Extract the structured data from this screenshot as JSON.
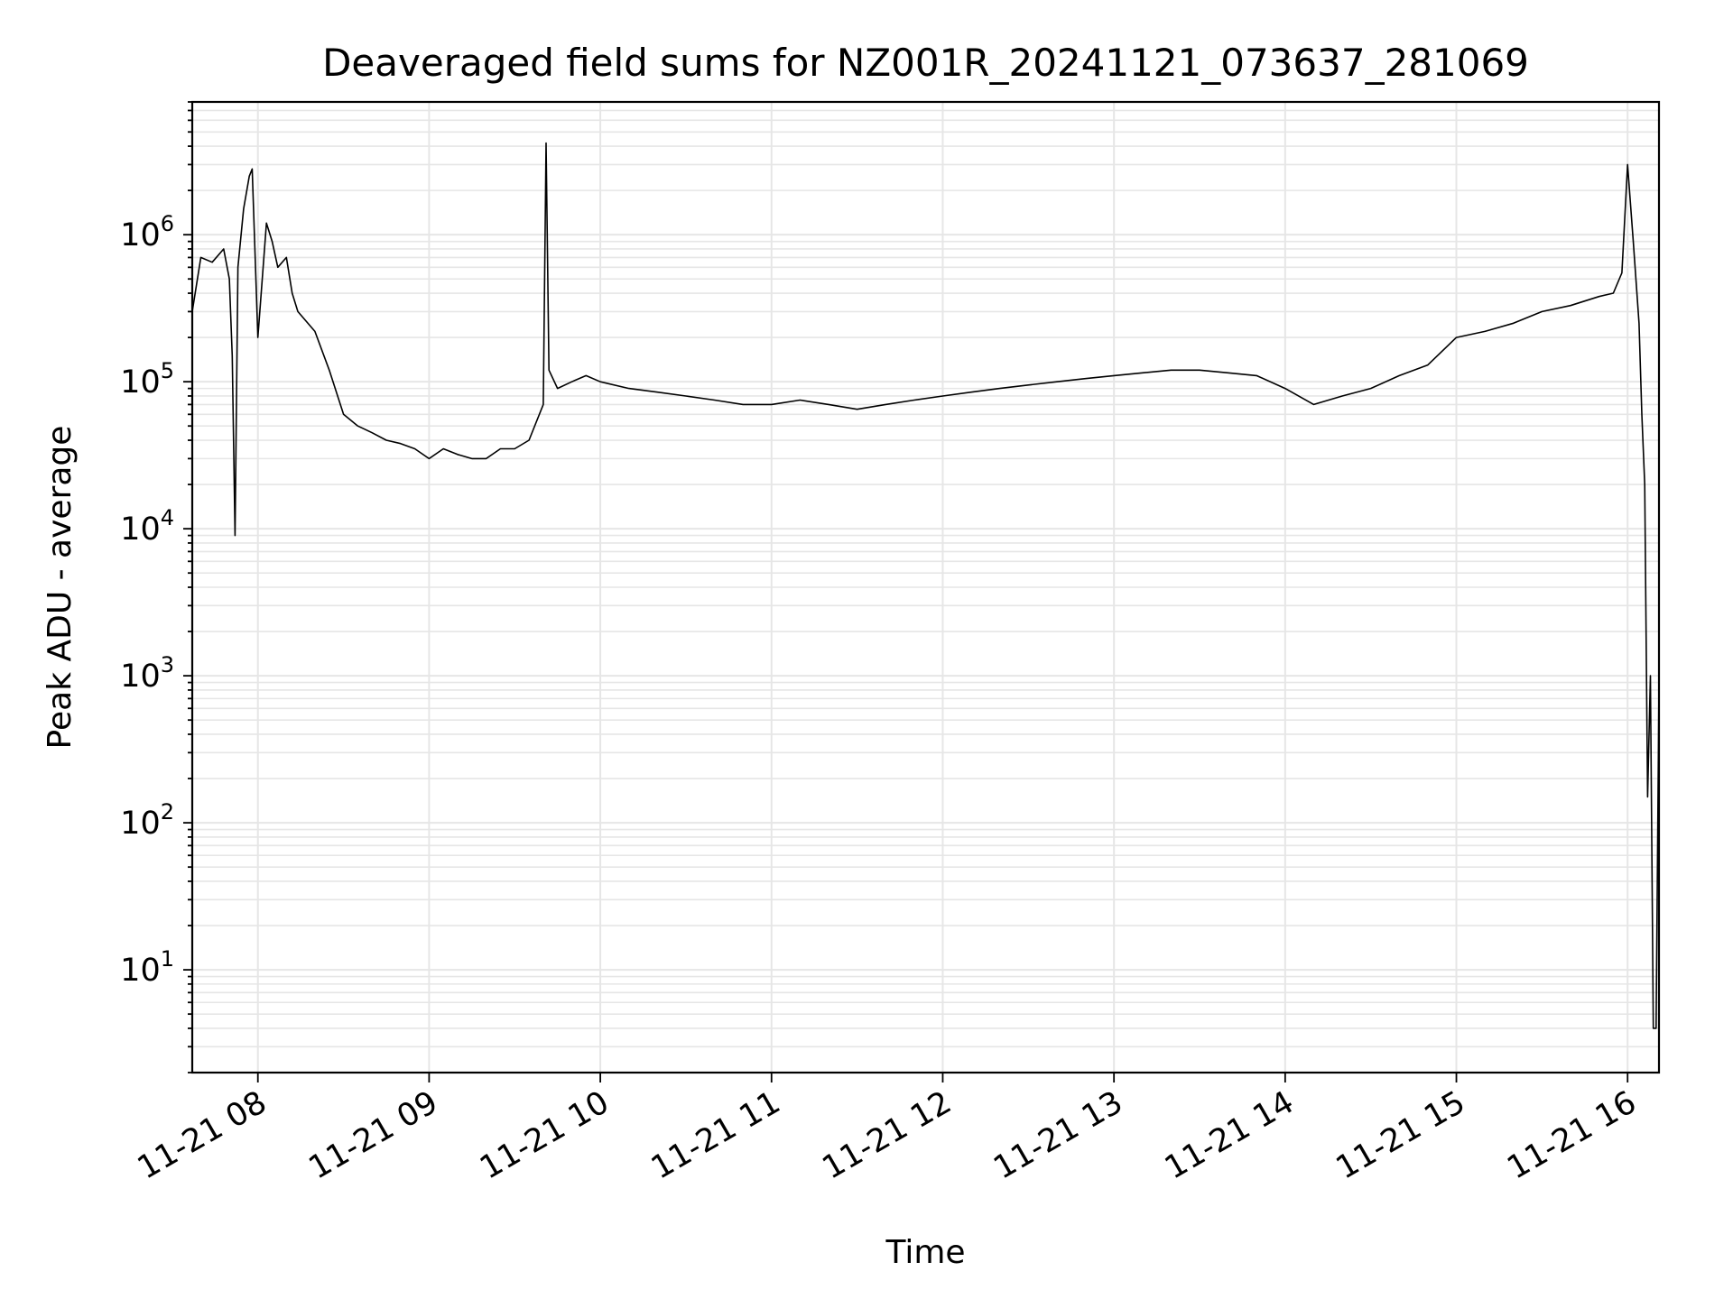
{
  "chart_data": {
    "type": "line",
    "title": "Deaveraged field sums for NZ001R_20241121_073637_281069",
    "xlabel": "Time",
    "ylabel": "Peak ADU - average",
    "yscale": "log",
    "ylim": [
      2,
      8000000
    ],
    "xlim": [
      "2024-11-21 07:37",
      "2024-11-21 16:11"
    ],
    "grid": true,
    "legend": "none",
    "line_color": "#000000",
    "grid_color": "#e6e6e6",
    "x_ticks": [
      {
        "value": "2024-11-21 08:00",
        "label": "11-21 08"
      },
      {
        "value": "2024-11-21 09:00",
        "label": "11-21 09"
      },
      {
        "value": "2024-11-21 10:00",
        "label": "11-21 10"
      },
      {
        "value": "2024-11-21 11:00",
        "label": "11-21 11"
      },
      {
        "value": "2024-11-21 12:00",
        "label": "11-21 12"
      },
      {
        "value": "2024-11-21 13:00",
        "label": "11-21 13"
      },
      {
        "value": "2024-11-21 14:00",
        "label": "11-21 14"
      },
      {
        "value": "2024-11-21 15:00",
        "label": "11-21 15"
      },
      {
        "value": "2024-11-21 16:00",
        "label": "11-21 16"
      }
    ],
    "y_ticks": [
      {
        "value": 10,
        "base": "10",
        "exp": "1"
      },
      {
        "value": 100,
        "base": "10",
        "exp": "2"
      },
      {
        "value": 1000,
        "base": "10",
        "exp": "3"
      },
      {
        "value": 10000,
        "base": "10",
        "exp": "4"
      },
      {
        "value": 100000,
        "base": "10",
        "exp": "5"
      },
      {
        "value": 1000000,
        "base": "10",
        "exp": "6"
      }
    ],
    "series": [
      {
        "x": [
          "2024-11-21 07:37",
          "2024-11-21 07:40",
          "2024-11-21 07:44",
          "2024-11-21 07:48",
          "2024-11-21 07:50",
          "2024-11-21 07:51",
          "2024-11-21 07:52",
          "2024-11-21 07:53",
          "2024-11-21 07:55",
          "2024-11-21 07:57",
          "2024-11-21 07:58",
          "2024-11-21 08:00",
          "2024-11-21 08:03",
          "2024-11-21 08:05",
          "2024-11-21 08:07",
          "2024-11-21 08:10",
          "2024-11-21 08:12",
          "2024-11-21 08:14",
          "2024-11-21 08:20",
          "2024-11-21 08:25",
          "2024-11-21 08:30",
          "2024-11-21 08:35",
          "2024-11-21 08:40",
          "2024-11-21 08:45",
          "2024-11-21 08:50",
          "2024-11-21 08:55",
          "2024-11-21 09:00",
          "2024-11-21 09:05",
          "2024-11-21 09:10",
          "2024-11-21 09:15",
          "2024-11-21 09:20",
          "2024-11-21 09:25",
          "2024-11-21 09:30",
          "2024-11-21 09:35",
          "2024-11-21 09:40",
          "2024-11-21 09:41",
          "2024-11-21 09:42",
          "2024-11-21 09:45",
          "2024-11-21 09:50",
          "2024-11-21 09:55",
          "2024-11-21 10:00",
          "2024-11-21 10:10",
          "2024-11-21 10:20",
          "2024-11-21 10:30",
          "2024-11-21 10:40",
          "2024-11-21 10:50",
          "2024-11-21 11:00",
          "2024-11-21 11:10",
          "2024-11-21 11:20",
          "2024-11-21 11:30",
          "2024-11-21 11:40",
          "2024-11-21 11:50",
          "2024-11-21 12:00",
          "2024-11-21 12:10",
          "2024-11-21 12:20",
          "2024-11-21 12:30",
          "2024-11-21 12:40",
          "2024-11-21 12:50",
          "2024-11-21 13:00",
          "2024-11-21 13:10",
          "2024-11-21 13:20",
          "2024-11-21 13:30",
          "2024-11-21 13:40",
          "2024-11-21 13:50",
          "2024-11-21 14:00",
          "2024-11-21 14:10",
          "2024-11-21 14:20",
          "2024-11-21 14:30",
          "2024-11-21 14:40",
          "2024-11-21 14:50",
          "2024-11-21 15:00",
          "2024-11-21 15:10",
          "2024-11-21 15:20",
          "2024-11-21 15:30",
          "2024-11-21 15:40",
          "2024-11-21 15:50",
          "2024-11-21 15:55",
          "2024-11-21 15:58",
          "2024-11-21 16:00",
          "2024-11-21 16:02",
          "2024-11-21 16:04",
          "2024-11-21 16:05",
          "2024-11-21 16:06",
          "2024-11-21 16:07",
          "2024-11-21 16:08",
          "2024-11-21 16:09",
          "2024-11-21 16:10",
          "2024-11-21 16:11"
        ],
        "y": [
          300000,
          700000,
          650000,
          800000,
          500000,
          150000,
          9000,
          600000,
          1500000,
          2500000,
          2800000,
          200000,
          1200000,
          900000,
          600000,
          700000,
          400000,
          300000,
          220000,
          120000,
          60000,
          50000,
          45000,
          40000,
          38000,
          35000,
          30000,
          35000,
          32000,
          30000,
          30000,
          35000,
          35000,
          40000,
          70000,
          4200000,
          120000,
          90000,
          100000,
          110000,
          100000,
          90000,
          85000,
          80000,
          75000,
          70000,
          70000,
          75000,
          70000,
          65000,
          70000,
          75000,
          80000,
          85000,
          90000,
          95000,
          100000,
          105000,
          110000,
          115000,
          120000,
          120000,
          115000,
          110000,
          90000,
          70000,
          80000,
          90000,
          110000,
          130000,
          200000,
          220000,
          250000,
          300000,
          330000,
          380000,
          400000,
          550000,
          3000000,
          900000,
          250000,
          60000,
          20000,
          150,
          1000,
          4,
          4,
          900
        ]
      }
    ]
  }
}
